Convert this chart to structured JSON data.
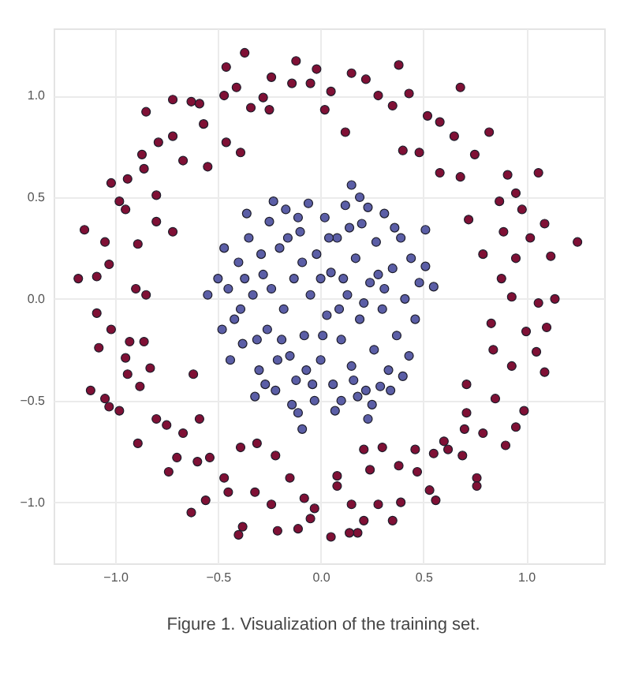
{
  "chart_data": {
    "type": "scatter",
    "annotations": [
      "Figure 1. Visualization of the training set."
    ],
    "xlim": [
      -1.3,
      1.38
    ],
    "ylim": [
      -1.3,
      1.33
    ],
    "xticks": [
      {
        "value": -1,
        "label": "−1.0"
      },
      {
        "value": -0.5,
        "label": "−0.5"
      },
      {
        "value": 0,
        "label": "0.0"
      },
      {
        "value": 0.5,
        "label": "0.5"
      },
      {
        "value": 1,
        "label": "1.0"
      }
    ],
    "yticks": [
      {
        "value": -1,
        "label": "−1.0"
      },
      {
        "value": -0.5,
        "label": "−0.5"
      },
      {
        "value": 0,
        "label": "0.0"
      },
      {
        "value": 0.5,
        "label": "0.5"
      },
      {
        "value": 1,
        "label": "1.0"
      }
    ],
    "grid": true,
    "marker": "circle",
    "series": [
      {
        "color": "#7f1035",
        "x": [
          -0.37,
          -0.46,
          -0.85,
          -0.72,
          -0.63,
          -0.59,
          -1.15,
          -1.18,
          -1.02,
          -0.55,
          -0.79,
          -0.87,
          -0.98,
          -0.41,
          -0.47,
          -0.24,
          -0.12,
          -0.14,
          -0.57,
          -0.67,
          -0.72,
          -0.94,
          -1.05,
          -0.89,
          -0.8,
          -0.72,
          -0.95,
          -1.03,
          -1.09,
          -0.34,
          -0.46,
          -0.39,
          -0.28,
          -0.05,
          -0.25,
          -0.8,
          -0.86,
          0.38,
          0.15,
          0.22,
          0.68,
          0.82,
          1.06,
          1.25,
          1.09,
          0.72,
          0.79,
          1.12,
          0.58,
          0.75,
          0.43,
          0.35,
          0.58,
          0.02,
          0.12,
          0.4,
          0.48,
          0.91,
          0.87,
          0.98,
          0.89,
          0.05,
          0.28,
          0.52,
          0.65,
          0.68,
          0.95,
          1.02,
          0.95,
          -0.02,
          -0.62,
          -0.63,
          -0.56,
          -0.4,
          -0.38,
          -0.21,
          -0.11,
          -1.09,
          -1.08,
          -1.05,
          -1.03,
          -0.89,
          -0.8,
          -0.74,
          -0.67,
          -0.59,
          -0.54,
          -0.47,
          -0.39,
          -0.31,
          -0.22,
          -0.15,
          -0.24,
          -0.32,
          -0.9,
          -0.85,
          -1.02,
          -0.93,
          -0.86,
          -0.95,
          -0.83,
          -0.94,
          -0.88,
          -1.12,
          -0.98,
          -0.75,
          -0.7,
          -0.6,
          -0.45,
          -0.08,
          -0.05,
          1.14,
          0.88,
          0.93,
          1.06,
          1.1,
          0.83,
          1.0,
          0.84,
          1.05,
          1.09,
          0.93,
          0.71,
          0.85,
          0.99,
          0.95,
          0.9,
          0.71,
          0.7,
          0.79,
          0.6,
          0.62,
          0.69,
          0.76,
          0.76,
          0.56,
          0.53,
          0.47,
          0.46,
          0.38,
          0.39,
          0.35,
          0.28,
          0.24,
          0.3,
          0.21,
          0.08,
          0.08,
          0.15,
          0.18,
          0.14,
          0.05,
          -0.03,
          0.21,
          0.55
        ],
        "values": [
          1.21,
          1.14,
          0.92,
          0.98,
          0.97,
          0.96,
          0.34,
          0.1,
          0.57,
          0.65,
          0.77,
          0.71,
          0.48,
          1.04,
          1.0,
          1.09,
          1.17,
          1.06,
          0.86,
          0.68,
          0.8,
          0.59,
          0.28,
          0.27,
          0.38,
          0.33,
          0.44,
          0.17,
          0.11,
          0.94,
          0.77,
          0.72,
          0.99,
          1.06,
          0.93,
          0.51,
          0.64,
          1.15,
          1.11,
          1.08,
          1.04,
          0.82,
          0.62,
          0.28,
          0.37,
          0.39,
          0.22,
          0.21,
          0.62,
          0.71,
          1.01,
          0.95,
          0.87,
          0.93,
          0.82,
          0.73,
          0.72,
          0.61,
          0.48,
          0.44,
          0.33,
          1.02,
          1.0,
          0.9,
          0.8,
          0.6,
          0.52,
          0.3,
          0.2,
          1.13,
          -0.37,
          -1.05,
          -0.99,
          -1.16,
          -1.12,
          -1.14,
          -1.13,
          -0.07,
          -0.24,
          -0.49,
          -0.53,
          -0.71,
          -0.59,
          -0.85,
          -0.66,
          -0.59,
          -0.78,
          -0.88,
          -0.73,
          -0.71,
          -0.77,
          -0.88,
          -1.01,
          -0.95,
          0.05,
          0.02,
          -0.15,
          -0.21,
          -0.21,
          -0.29,
          -0.34,
          -0.37,
          -0.43,
          -0.45,
          -0.55,
          -0.62,
          -0.78,
          -0.8,
          -0.95,
          -0.98,
          -1.08,
          0.0,
          0.1,
          0.01,
          -0.02,
          -0.14,
          -0.12,
          -0.16,
          -0.25,
          -0.26,
          -0.36,
          -0.33,
          -0.42,
          -0.49,
          -0.55,
          -0.63,
          -0.72,
          -0.56,
          -0.64,
          -0.66,
          -0.7,
          -0.74,
          -0.77,
          -0.88,
          -0.92,
          -0.99,
          -0.94,
          -0.85,
          -0.74,
          -0.82,
          -1.0,
          -1.09,
          -1.01,
          -0.84,
          -0.73,
          -0.74,
          -0.87,
          -0.92,
          -1.01,
          -1.15,
          -1.15,
          -1.17,
          -1.03,
          -1.09,
          -0.76
        ]
      },
      {
        "color": "#5b5ea6",
        "x": [
          -0.55,
          0.15,
          0.51,
          0.51,
          0.55,
          -0.11,
          -0.09,
          0.23,
          0.1,
          0.29,
          -0.45,
          -0.42,
          -0.4,
          -0.38,
          -0.35,
          -0.33,
          -0.3,
          -0.28,
          -0.26,
          -0.25,
          -0.22,
          -0.2,
          -0.18,
          -0.17,
          -0.15,
          -0.13,
          -0.12,
          -0.1,
          -0.08,
          -0.06,
          -0.05,
          -0.03,
          -0.02,
          0.0,
          0.02,
          0.03,
          0.05,
          0.06,
          0.08,
          0.1,
          0.12,
          0.13,
          0.15,
          0.17,
          0.19,
          0.2,
          0.22,
          0.24,
          0.26,
          0.27,
          0.3,
          0.31,
          0.33,
          0.35,
          0.37,
          0.39,
          0.41,
          0.43,
          0.44,
          0.46,
          -0.48,
          -0.47,
          -0.44,
          -0.36,
          -0.32,
          -0.24,
          -0.21,
          -0.16,
          -0.07,
          0.0,
          0.04,
          0.09,
          0.14,
          0.18,
          0.23,
          0.28,
          0.34,
          0.36,
          0.4,
          0.48,
          -0.5,
          -0.39,
          -0.29,
          -0.19,
          -0.09,
          0.01,
          0.11,
          0.21,
          0.31,
          -0.14,
          -0.04,
          0.07,
          0.16,
          0.25,
          -0.27,
          -0.37,
          -0.31,
          -0.23,
          -0.11,
          0.19
        ],
        "values": [
          0.02,
          0.56,
          0.34,
          0.16,
          0.06,
          -0.56,
          -0.64,
          -0.59,
          -0.5,
          -0.43,
          0.05,
          -0.1,
          0.18,
          -0.22,
          0.3,
          0.02,
          -0.35,
          0.12,
          -0.15,
          0.38,
          -0.45,
          0.25,
          -0.05,
          0.44,
          -0.28,
          0.1,
          -0.4,
          0.33,
          -0.18,
          0.47,
          0.02,
          -0.5,
          0.22,
          -0.3,
          0.4,
          -0.08,
          0.13,
          -0.42,
          0.3,
          -0.2,
          0.46,
          0.02,
          -0.33,
          0.2,
          -0.1,
          0.37,
          -0.45,
          0.08,
          -0.25,
          0.28,
          -0.05,
          0.42,
          -0.35,
          0.15,
          -0.18,
          0.3,
          0.0,
          -0.28,
          0.2,
          -0.1,
          -0.15,
          0.25,
          -0.3,
          0.42,
          -0.48,
          0.05,
          -0.3,
          0.3,
          -0.35,
          0.1,
          0.3,
          -0.05,
          0.35,
          -0.48,
          0.45,
          0.12,
          -0.45,
          0.35,
          -0.38,
          0.08,
          0.1,
          -0.05,
          0.22,
          -0.2,
          0.18,
          -0.18,
          0.1,
          -0.02,
          0.05,
          -0.52,
          -0.42,
          -0.55,
          -0.4,
          -0.52,
          -0.42,
          0.1,
          -0.2,
          0.48,
          0.4,
          0.5
        ]
      }
    ]
  }
}
